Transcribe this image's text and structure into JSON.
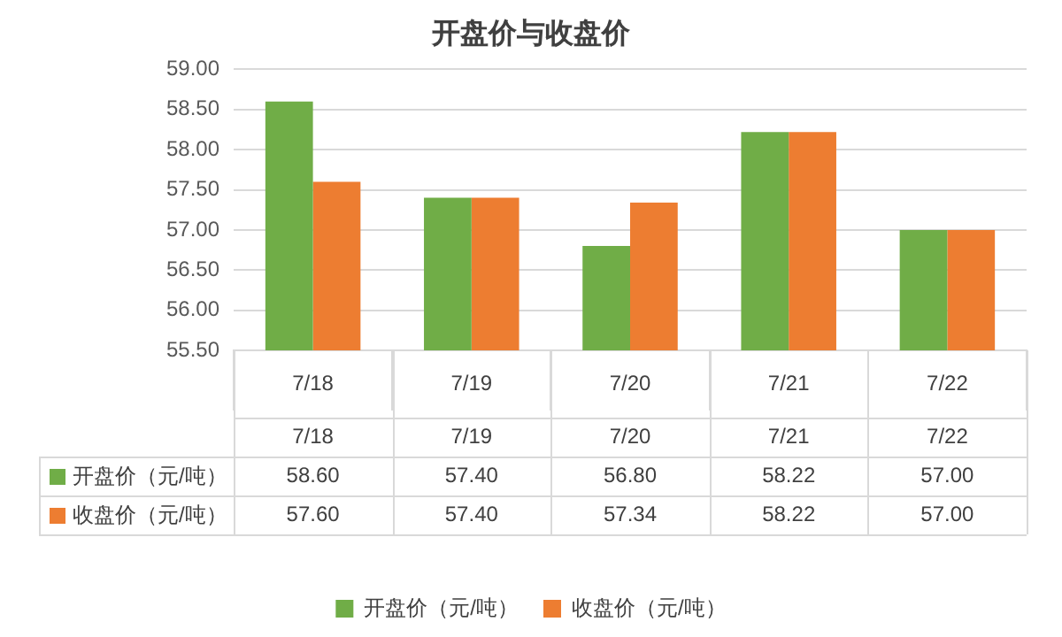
{
  "chart_data": {
    "type": "bar",
    "title": "开盘价与收盘价",
    "categories": [
      "7/18",
      "7/19",
      "7/20",
      "7/21",
      "7/22"
    ],
    "series": [
      {
        "name": "开盘价（元/吨）",
        "color": "#70ad47",
        "values": [
          58.6,
          57.4,
          56.8,
          58.22,
          57.0
        ],
        "value_labels": [
          "58.60",
          "57.40",
          "56.80",
          "58.22",
          "57.00"
        ]
      },
      {
        "name": "收盘价（元/吨）",
        "color": "#ed7d31",
        "values": [
          57.6,
          57.4,
          57.34,
          58.22,
          57.0
        ],
        "value_labels": [
          "57.60",
          "57.40",
          "57.34",
          "58.22",
          "57.00"
        ]
      }
    ],
    "ylim": [
      55.5,
      59.0
    ],
    "yticks": [
      {
        "value": 55.5,
        "label": "55.50"
      },
      {
        "value": 56.0,
        "label": "56.00"
      },
      {
        "value": 56.5,
        "label": "56.50"
      },
      {
        "value": 57.0,
        "label": "57.00"
      },
      {
        "value": 57.5,
        "label": "57.50"
      },
      {
        "value": 58.0,
        "label": "58.00"
      },
      {
        "value": 58.5,
        "label": "58.50"
      },
      {
        "value": 59.0,
        "label": "59.00"
      }
    ],
    "grid": "y",
    "legend": "bottom"
  }
}
